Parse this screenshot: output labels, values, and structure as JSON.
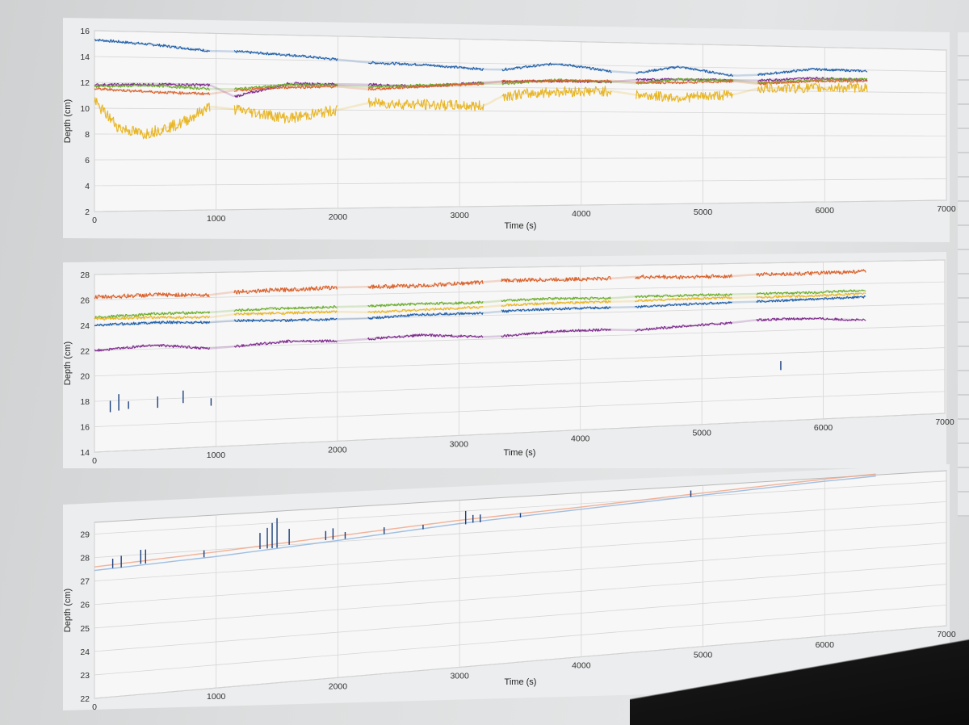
{
  "colors": {
    "blue": "#1f5fa8",
    "orange": "#d9602a",
    "yellow": "#e8b523",
    "purple": "#7d2a8c",
    "green": "#6aac2a",
    "navy": "#1b3f7c",
    "light_blue": "#8ab0dc",
    "salmon": "#f0a080",
    "grid": "#d6d6d6",
    "axes_bg": "#f7f7f7"
  },
  "chart_data": [
    {
      "type": "line",
      "xlabel": "Time (s)",
      "ylabel": "Depth (cm)",
      "xlim": [
        0,
        7000
      ],
      "ylim": [
        2,
        16
      ],
      "x_ticks": [
        "0",
        "1000",
        "2000",
        "3000",
        "4000",
        "5000",
        "6000",
        "7000"
      ],
      "y_ticks": [
        "2",
        "4",
        "6",
        "8",
        "10",
        "12",
        "14",
        "16"
      ],
      "grid": true,
      "segments": [
        [
          0,
          950
        ],
        [
          1150,
          2000
        ],
        [
          2250,
          3200
        ],
        [
          3350,
          4250
        ],
        [
          4450,
          5250
        ],
        [
          5450,
          6350
        ]
      ],
      "series": [
        {
          "color": "blue",
          "x": [
            0,
            500,
            950,
            1150,
            1600,
            2000,
            2250,
            2700,
            3200,
            3350,
            3800,
            4250,
            4450,
            4800,
            5250,
            5450,
            5900,
            6350
          ],
          "values": [
            15.3,
            15.0,
            14.6,
            14.6,
            14.4,
            14.1,
            13.9,
            13.8,
            13.5,
            13.5,
            14.1,
            13.5,
            13.4,
            14.0,
            13.3,
            13.4,
            14.0,
            13.9
          ]
        },
        {
          "color": "purple",
          "x": [
            0,
            500,
            950,
            1150,
            1600,
            2000,
            2250,
            2700,
            3200,
            3350,
            3800,
            4250,
            4450,
            4800,
            5250,
            5450,
            5900,
            6350
          ],
          "values": [
            11.8,
            11.9,
            11.9,
            11.0,
            12.1,
            12.1,
            12.1,
            12.0,
            12.4,
            12.5,
            12.6,
            12.6,
            12.8,
            12.9,
            12.9,
            12.9,
            13.2,
            13.1
          ]
        },
        {
          "color": "green",
          "x": [
            0,
            500,
            950,
            1150,
            1600,
            2000,
            2250,
            2700,
            3200,
            3350,
            3800,
            4250,
            4450,
            4800,
            5250,
            5450,
            5900,
            6350
          ],
          "values": [
            11.7,
            11.8,
            11.6,
            11.6,
            12.0,
            12.0,
            11.9,
            12.1,
            12.3,
            12.3,
            12.7,
            12.6,
            12.5,
            12.9,
            12.9,
            12.7,
            13.0,
            13.2
          ]
        },
        {
          "color": "orange",
          "x": [
            0,
            500,
            950,
            1150,
            1600,
            2000,
            2250,
            2700,
            3200,
            3350,
            3800,
            4250,
            4450,
            4800,
            5250,
            5450,
            5900,
            6350
          ],
          "values": [
            11.5,
            11.3,
            11.2,
            11.5,
            11.8,
            11.9,
            11.7,
            12.0,
            12.3,
            12.5,
            12.6,
            12.7,
            12.6,
            12.6,
            12.8,
            12.6,
            12.9,
            13.0
          ]
        },
        {
          "color": "yellow",
          "x": [
            0,
            200,
            400,
            700,
            950,
            1150,
            1600,
            2000,
            2250,
            2700,
            3200,
            3350,
            3800,
            4250,
            4450,
            4800,
            5250,
            5450,
            5900,
            6350
          ],
          "values": [
            10.5,
            8.5,
            8.0,
            8.8,
            10.2,
            10.0,
            9.3,
            10.0,
            10.6,
            10.5,
            10.4,
            11.3,
            11.7,
            11.8,
            11.5,
            11.3,
            11.6,
            12.2,
            12.3,
            12.4
          ]
        }
      ]
    },
    {
      "type": "line",
      "xlabel": "Time (s)",
      "ylabel": "Depth (cm)",
      "xlim": [
        0,
        7000
      ],
      "ylim": [
        14,
        28
      ],
      "x_ticks": [
        "0",
        "1000",
        "2000",
        "3000",
        "4000",
        "5000",
        "6000",
        "7000"
      ],
      "y_ticks": [
        "14",
        "16",
        "18",
        "20",
        "22",
        "24",
        "26",
        "28"
      ],
      "grid": true,
      "segments": [
        [
          0,
          950
        ],
        [
          1150,
          2000
        ],
        [
          2250,
          3200
        ],
        [
          3350,
          4250
        ],
        [
          4450,
          5250
        ],
        [
          5450,
          6350
        ]
      ],
      "series": [
        {
          "color": "orange",
          "x": [
            0,
            500,
            950,
            1150,
            1600,
            2000,
            2250,
            2700,
            3200,
            3350,
            3800,
            4250,
            4450,
            4800,
            5250,
            5450,
            5900,
            6350
          ],
          "values": [
            26.2,
            26.3,
            26.2,
            26.4,
            26.5,
            26.6,
            26.6,
            26.6,
            26.8,
            26.9,
            26.9,
            26.9,
            27.0,
            26.9,
            26.9,
            27.0,
            27.0,
            27.1
          ]
        },
        {
          "color": "green",
          "x": [
            0,
            500,
            950,
            1150,
            1600,
            2000,
            2250,
            2700,
            3200,
            3350,
            3800,
            4250,
            4450,
            4800,
            5250,
            5450,
            5900,
            6350
          ],
          "values": [
            24.6,
            24.8,
            24.8,
            24.9,
            25.0,
            25.0,
            25.0,
            25.1,
            25.1,
            25.2,
            25.3,
            25.2,
            25.3,
            25.3,
            25.3,
            25.3,
            25.3,
            25.4
          ]
        },
        {
          "color": "yellow",
          "x": [
            0,
            500,
            950,
            1150,
            1600,
            2000,
            2250,
            2700,
            3200,
            3350,
            3800,
            4250,
            4450,
            4800,
            5250,
            5450,
            5900,
            6350
          ],
          "values": [
            24.5,
            24.5,
            24.4,
            24.6,
            24.6,
            24.6,
            24.5,
            24.6,
            24.7,
            24.8,
            24.9,
            24.9,
            24.9,
            25.0,
            25.0,
            25.0,
            25.0,
            25.1
          ]
        },
        {
          "color": "blue",
          "x": [
            0,
            500,
            950,
            1150,
            1600,
            2000,
            2250,
            2700,
            3200,
            3350,
            3800,
            4250,
            4450,
            4800,
            5250,
            5450,
            5900,
            6350
          ],
          "values": [
            24.0,
            24.1,
            24.0,
            24.1,
            24.0,
            24.0,
            24.0,
            24.2,
            24.2,
            24.3,
            24.4,
            24.4,
            24.4,
            24.5,
            24.6,
            24.6,
            24.7,
            24.8
          ]
        },
        {
          "color": "purple",
          "x": [
            0,
            500,
            950,
            1150,
            1600,
            2000,
            2250,
            2700,
            3200,
            3350,
            3800,
            4250,
            4450,
            4800,
            5250,
            5450,
            5900,
            6350
          ],
          "values": [
            22.0,
            22.3,
            21.9,
            22.0,
            22.3,
            22.2,
            22.3,
            22.5,
            22.2,
            22.2,
            22.5,
            22.5,
            22.4,
            22.6,
            22.8,
            23.0,
            23.0,
            22.7
          ]
        }
      ],
      "spikes": [
        {
          "x": 130,
          "y0": 17.1,
          "y1": 18.0
        },
        {
          "x": 200,
          "y0": 17.2,
          "y1": 18.5
        },
        {
          "x": 280,
          "y0": 17.3,
          "y1": 17.9
        },
        {
          "x": 520,
          "y0": 17.3,
          "y1": 18.2
        },
        {
          "x": 730,
          "y0": 17.6,
          "y1": 18.6
        },
        {
          "x": 960,
          "y0": 17.3,
          "y1": 17.9
        },
        {
          "x": 5650,
          "y0": 18.5,
          "y1": 19.3
        }
      ]
    },
    {
      "type": "line",
      "xlabel": "Time (s)",
      "ylabel": "Depth (cm)",
      "xlim": [
        0,
        7000
      ],
      "ylim": [
        22,
        29.5
      ],
      "x_ticks": [
        "0",
        "1000",
        "2000",
        "3000",
        "4000",
        "5000",
        "6000",
        "7000"
      ],
      "y_ticks": [
        "22",
        "23",
        "24",
        "25",
        "26",
        "27",
        "28",
        "29"
      ],
      "grid": true,
      "series": [
        {
          "color": "salmon",
          "x": [
            0,
            1000,
            2000,
            3000,
            4000,
            5000,
            6000,
            6450
          ],
          "values": [
            27.6,
            27.9,
            28.25,
            28.6,
            28.85,
            29.15,
            29.45,
            29.55
          ]
        },
        {
          "color": "light_blue",
          "x": [
            0,
            1000,
            2000,
            3000,
            4000,
            5000,
            6000,
            6450
          ],
          "values": [
            27.45,
            27.7,
            28.05,
            28.45,
            28.75,
            29.05,
            29.35,
            29.45
          ]
        }
      ],
      "spikes": [
        {
          "x": 150,
          "y0": 27.5,
          "y1": 27.9
        },
        {
          "x": 220,
          "y0": 27.5,
          "y1": 28.0
        },
        {
          "x": 380,
          "y0": 27.6,
          "y1": 28.2
        },
        {
          "x": 420,
          "y0": 27.6,
          "y1": 28.2
        },
        {
          "x": 900,
          "y0": 27.7,
          "y1": 28.0
        },
        {
          "x": 1360,
          "y0": 27.9,
          "y1": 28.6
        },
        {
          "x": 1420,
          "y0": 27.9,
          "y1": 28.8
        },
        {
          "x": 1460,
          "y0": 27.9,
          "y1": 29.0
        },
        {
          "x": 1500,
          "y0": 27.9,
          "y1": 29.2
        },
        {
          "x": 1600,
          "y0": 28.0,
          "y1": 28.7
        },
        {
          "x": 1900,
          "y0": 28.1,
          "y1": 28.5
        },
        {
          "x": 1960,
          "y0": 28.1,
          "y1": 28.6
        },
        {
          "x": 2060,
          "y0": 28.1,
          "y1": 28.4
        },
        {
          "x": 2380,
          "y0": 28.2,
          "y1": 28.5
        },
        {
          "x": 2700,
          "y0": 28.3,
          "y1": 28.5
        },
        {
          "x": 3050,
          "y0": 28.4,
          "y1": 29.0
        },
        {
          "x": 3110,
          "y0": 28.45,
          "y1": 28.8
        },
        {
          "x": 3170,
          "y0": 28.45,
          "y1": 28.8
        },
        {
          "x": 3500,
          "y0": 28.55,
          "y1": 28.75
        },
        {
          "x": 4900,
          "y0": 29.0,
          "y1": 29.3
        }
      ]
    }
  ]
}
